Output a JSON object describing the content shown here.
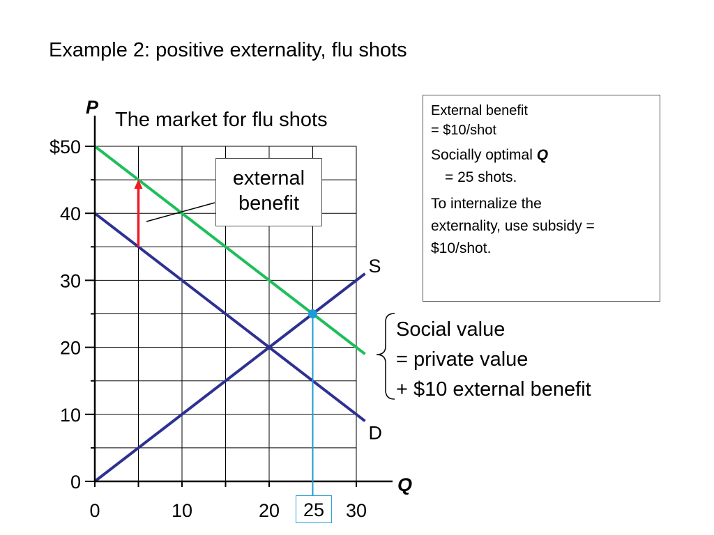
{
  "slide": {
    "title": "Example 2: positive externality, flu shots"
  },
  "info_box": {
    "line1": "External benefit",
    "line2": "= $10/shot",
    "line3": "Socially optimal",
    "line3_q": "Q",
    "line4": "= 25 shots.",
    "line5": "To internalize the",
    "line6": "externality, use subsidy =",
    "line7": "$10/shot."
  },
  "external_benefit_box": {
    "line1": "external",
    "line2": "benefit"
  },
  "social_value_note": {
    "line1": "Social value",
    "line2": "= private value",
    "line3": "+ $10 external benefit"
  },
  "chart_data": {
    "type": "line",
    "title": "The market for flu shots",
    "xlabel": "Q",
    "ylabel": "P",
    "xlim": [
      0,
      30
    ],
    "ylim": [
      0,
      50
    ],
    "x_ticks": [
      "0",
      "10",
      "20",
      "25",
      "30"
    ],
    "y_ticks": [
      "0",
      "10",
      "20",
      "30",
      "40",
      "$50"
    ],
    "grid": true,
    "series": [
      {
        "name": "S",
        "points": [
          [
            0,
            0
          ],
          [
            31,
            31
          ]
        ],
        "color": "#2e3192"
      },
      {
        "name": "D",
        "points": [
          [
            0,
            40
          ],
          [
            31,
            9
          ]
        ],
        "color": "#2e3192"
      },
      {
        "name": "",
        "points": [
          [
            0,
            50
          ],
          [
            31,
            19
          ]
        ],
        "color": "#1dbf5a"
      }
    ],
    "equilibrium": {
      "x": 25,
      "y": 25,
      "color": "#1f9bd7"
    },
    "highlight_q": 25,
    "external_benefit_arrow": {
      "x": 5,
      "from": 35,
      "to": 45,
      "color": "#ee1c25"
    },
    "colors": {
      "axis": "#000000",
      "grid": "#000000"
    }
  }
}
